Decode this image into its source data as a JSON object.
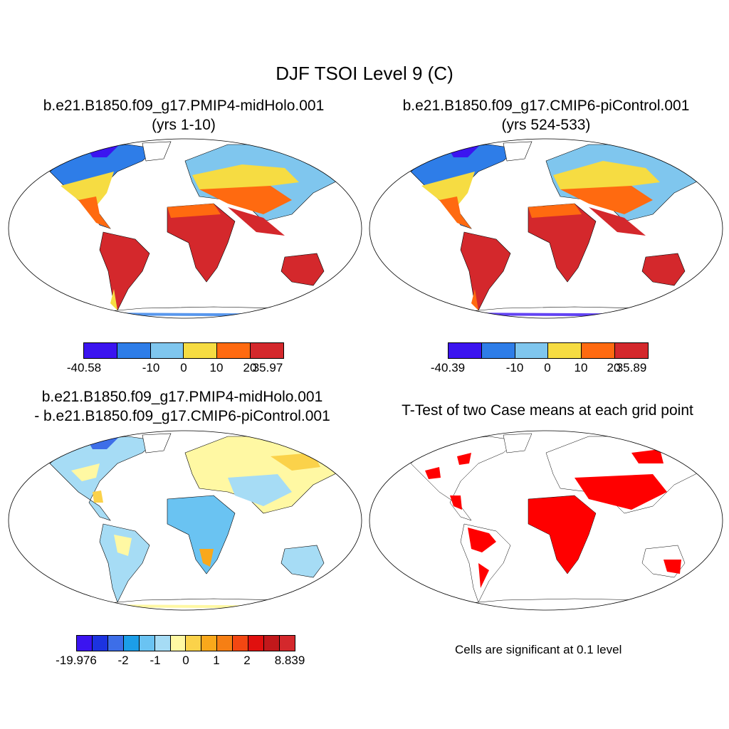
{
  "title": "DJF TSOI Level 9 (C)",
  "panels": [
    {
      "line1": "b.e21.B1850.f09_g17.PMIP4-midHolo.001",
      "line2": "(yrs 1-10)"
    },
    {
      "line1": "b.e21.B1850.f09_g17.CMIP6-piControl.001",
      "line2": "(yrs 524-533)"
    },
    {
      "line1": "b.e21.B1850.f09_g17.PMIP4-midHolo.001",
      "line2": "- b.e21.B1850.f09_g17.CMIP6-piControl.001"
    },
    {
      "line1": "T-Test of two Case means at each grid point",
      "line2": ""
    }
  ],
  "colorbars": {
    "case1": {
      "colors": [
        "#3b14f0",
        "#2e7de8",
        "#7fc6ee",
        "#f6dc42",
        "#ff6a10",
        "#d4282c"
      ],
      "labels": [
        "-40.58",
        "-10",
        "0",
        "10",
        "20",
        "35.97"
      ]
    },
    "case2": {
      "colors": [
        "#3b14f0",
        "#2e7de8",
        "#7fc6ee",
        "#f6dc42",
        "#ff6a10",
        "#d4282c"
      ],
      "labels": [
        "-40.39",
        "-10",
        "0",
        "10",
        "20",
        "35.89"
      ]
    },
    "diff": {
      "colors": [
        "#3b14f0",
        "#1c33e0",
        "#3d6ee8",
        "#1c9ee8",
        "#6ac3f2",
        "#a6dcf5",
        "#fff8a3",
        "#fbd24a",
        "#f9a81b",
        "#f67f14",
        "#f34712",
        "#e0100f",
        "#c2181b",
        "#d4282c"
      ],
      "labels": [
        "-19.976",
        "-2",
        "-1",
        "0",
        "1",
        "2",
        "8.839"
      ]
    }
  },
  "note": "Cells are significant at 0.1 level"
}
